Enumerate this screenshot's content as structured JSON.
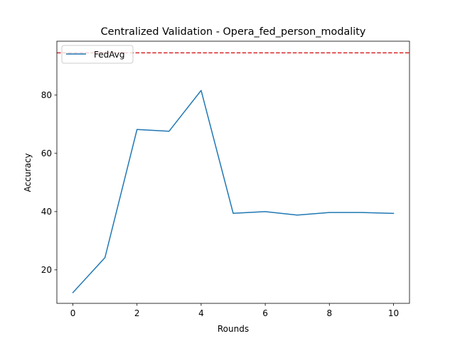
{
  "chart_data": {
    "type": "line",
    "title": "Centralized Validation - Opera_fed_person_modality",
    "xlabel": "Rounds",
    "ylabel": "Accuracy",
    "xlim": [
      -0.5,
      10.5
    ],
    "ylim": [
      8.5,
      98.5
    ],
    "xticks": [
      0,
      2,
      4,
      6,
      8,
      10
    ],
    "yticks": [
      20,
      40,
      60,
      80
    ],
    "grid": false,
    "legend_position": "upper left",
    "series": [
      {
        "name": "FedAvg",
        "color": "#1f77b4",
        "style": "solid",
        "x": [
          0,
          1,
          2,
          3,
          4,
          5,
          6,
          7,
          8,
          9,
          10
        ],
        "y": [
          12.2,
          24.2,
          68.2,
          67.6,
          81.6,
          39.4,
          40.0,
          38.8,
          39.7,
          39.7,
          39.4
        ]
      }
    ],
    "reference_lines": [
      {
        "orientation": "horizontal",
        "y": 94.5,
        "color": "#d62728",
        "style": "dashed"
      }
    ]
  }
}
